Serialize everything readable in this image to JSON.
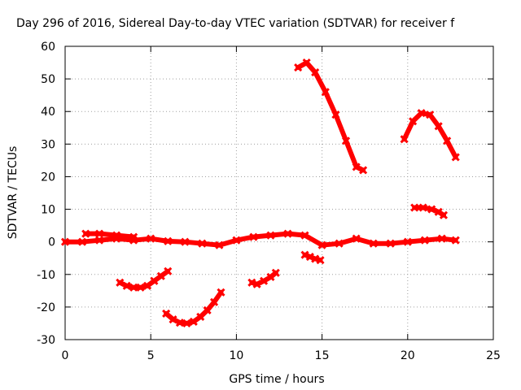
{
  "chart_data": {
    "type": "scatter",
    "title": "Day 296 of 2016, Sidereal Day-to-day VTEC variation (SDTVAR) for receiver f",
    "xlabel": "GPS time / hours",
    "ylabel": "SDTVAR / TECUs",
    "xlim": [
      0,
      25
    ],
    "ylim": [
      -30,
      60
    ],
    "xticks": [
      0,
      5,
      10,
      15,
      20,
      25
    ],
    "yticks": [
      -30,
      -20,
      -10,
      0,
      10,
      20,
      30,
      40,
      50,
      60
    ],
    "grid": true,
    "marker_color": "#ff0000",
    "series": [
      {
        "x": [
          0,
          1,
          2,
          3,
          4,
          5,
          6,
          7,
          8,
          9,
          10,
          11,
          12,
          13,
          14,
          15,
          16,
          17,
          18,
          19,
          20,
          21,
          22,
          22.8
        ],
        "y": [
          0,
          0,
          0.5,
          1,
          0.5,
          1,
          0.2,
          0,
          -0.5,
          -1,
          0.5,
          1.5,
          2,
          2.5,
          2,
          -1,
          -0.5,
          1,
          -0.5,
          -0.5,
          0,
          0.5,
          1,
          0.5
        ]
      },
      {
        "x": [
          1.2,
          2,
          3,
          4
        ],
        "y": [
          2.5,
          2.5,
          2,
          1.5
        ]
      },
      {
        "x": [
          3.2,
          3.6,
          4,
          4.4,
          4.8,
          5.2,
          5.6,
          6
        ],
        "y": [
          -12.5,
          -13.5,
          -14,
          -14,
          -13.5,
          -12,
          -10.5,
          -9
        ]
      },
      {
        "x": [
          5.9,
          6.3,
          6.7,
          7.1,
          7.5,
          7.9,
          8.3,
          8.7,
          9.1
        ],
        "y": [
          -22,
          -23.8,
          -24.8,
          -25,
          -24.5,
          -23,
          -21,
          -18.5,
          -15.5
        ]
      },
      {
        "x": [
          10.9,
          11.2,
          11.6,
          12,
          12.3
        ],
        "y": [
          -12.5,
          -13,
          -12,
          -10.8,
          -9.5
        ]
      },
      {
        "x": [
          13.6,
          14.1,
          14.6,
          15.2,
          15.8,
          16.4,
          17,
          17.4
        ],
        "y": [
          53.5,
          55,
          52,
          46,
          39,
          31,
          23,
          22
        ]
      },
      {
        "x": [
          14,
          14.3,
          14.6,
          14.9
        ],
        "y": [
          -4,
          -4.6,
          -5.2,
          -5.6
        ]
      },
      {
        "x": [
          19.8,
          20.3,
          20.8,
          21.3,
          21.8,
          22.3,
          22.8
        ],
        "y": [
          31.5,
          37,
          39.5,
          39,
          35.5,
          31,
          26
        ]
      },
      {
        "x": [
          20.4,
          20.9,
          21.4,
          21.8,
          22.1
        ],
        "y": [
          10.5,
          10.5,
          10,
          9.2,
          8.2
        ]
      }
    ]
  }
}
